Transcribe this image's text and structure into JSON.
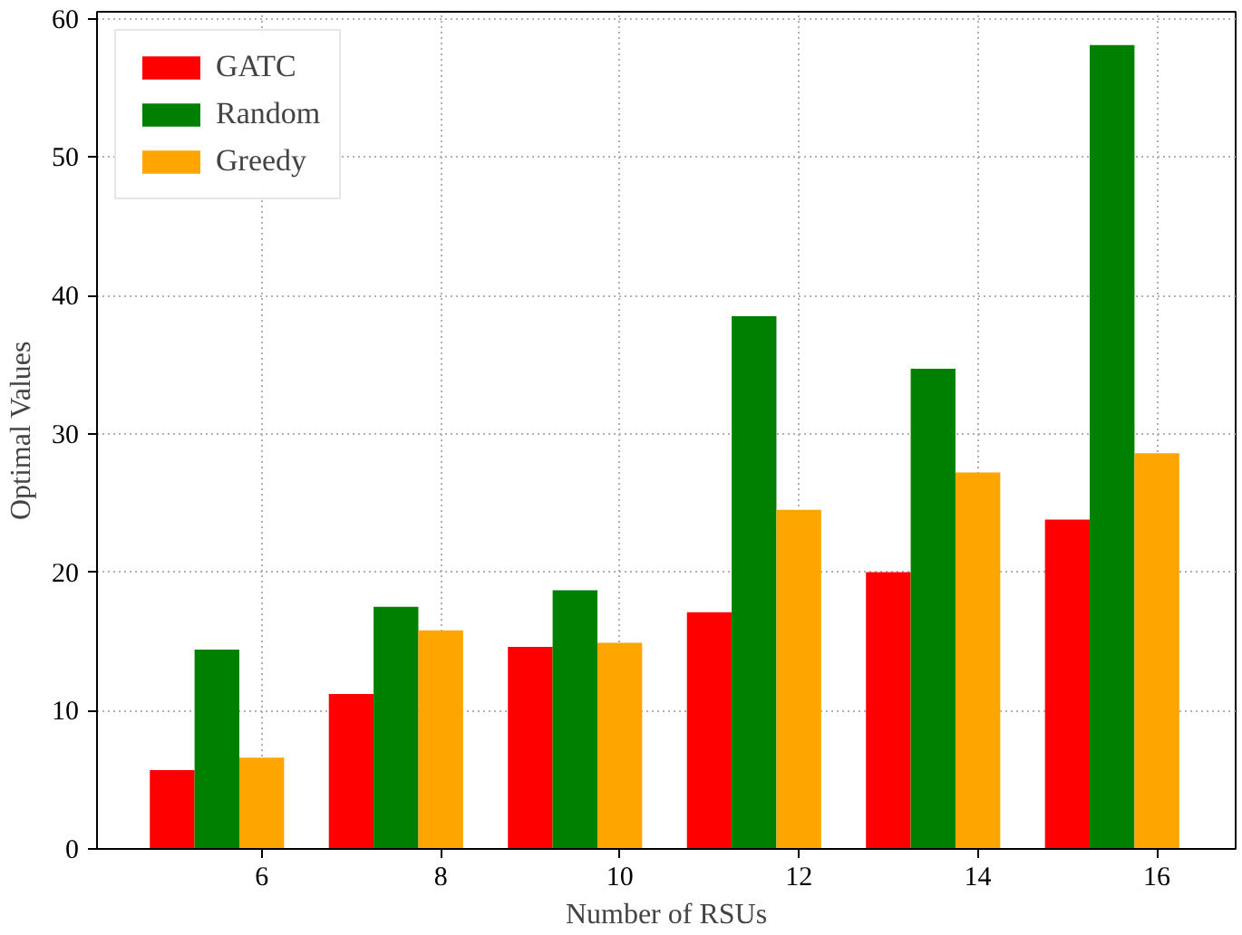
{
  "chart_data": {
    "type": "bar",
    "xlabel": "Number of RSUs",
    "ylabel": "Optimal Values",
    "categories": [
      "6",
      "8",
      "10",
      "12",
      "14",
      "16"
    ],
    "series": [
      {
        "name": "GATC",
        "color": "#ff0000",
        "values": [
          5.7,
          11.2,
          14.6,
          17.1,
          20.0,
          23.8
        ]
      },
      {
        "name": "Random",
        "color": "#008000",
        "values": [
          14.4,
          17.5,
          18.7,
          38.5,
          34.7,
          58.1
        ]
      },
      {
        "name": "Greedy",
        "color": "#ffa500",
        "values": [
          6.6,
          15.8,
          14.9,
          24.5,
          27.2,
          28.6
        ]
      }
    ],
    "ylim": [
      0,
      60.5
    ],
    "yticks": [
      0,
      10,
      20,
      30,
      40,
      50,
      60
    ],
    "grid": true,
    "legend": "top left"
  }
}
